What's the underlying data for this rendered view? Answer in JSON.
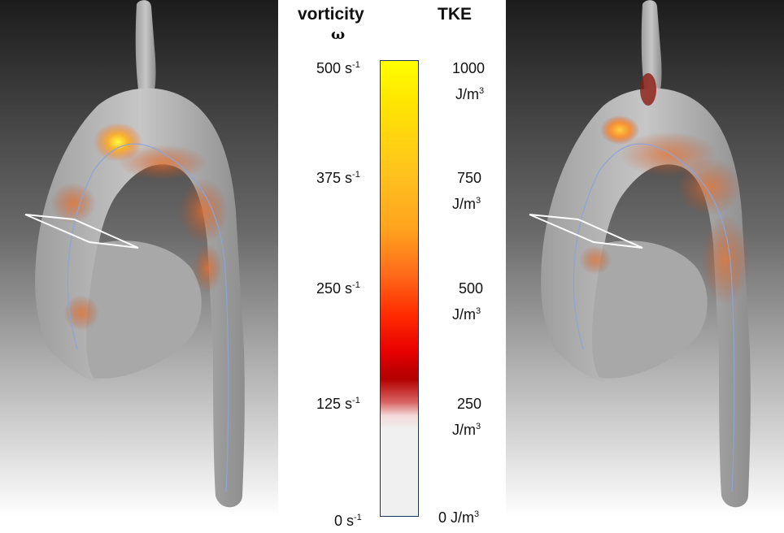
{
  "vorticity_title": "vorticity",
  "vorticity_symbol": "ω",
  "tke_title": "TKE",
  "vorticity_ticks": [
    {
      "value": "500 s",
      "exp": "-1"
    },
    {
      "value": "375 s",
      "exp": "-1"
    },
    {
      "value": "250 s",
      "exp": "-1"
    },
    {
      "value": "125 s",
      "exp": "-1"
    },
    {
      "value": "0 s",
      "exp": "-1"
    }
  ],
  "tke_ticks": [
    {
      "value": "1000",
      "unit": "J/m",
      "exp": "3"
    },
    {
      "value": "750",
      "unit": "J/m",
      "exp": "3"
    },
    {
      "value": "500",
      "unit": "J/m",
      "exp": "3"
    },
    {
      "value": "250",
      "unit": "J/m",
      "exp": "3"
    },
    {
      "value": "0 J/m",
      "exp": "3"
    }
  ],
  "colorbar": {
    "colors": [
      "#ffff00",
      "#ffa21e",
      "#ff2a00",
      "#b40000",
      "#f0f0f0"
    ],
    "border": "#1f3554"
  },
  "colors": {
    "vessel": "#bdbdbd",
    "centerline": "#8ea3d8",
    "plane": "#ffffff",
    "background_dark": "#1a1a1a",
    "background_light": "#ffffff"
  }
}
